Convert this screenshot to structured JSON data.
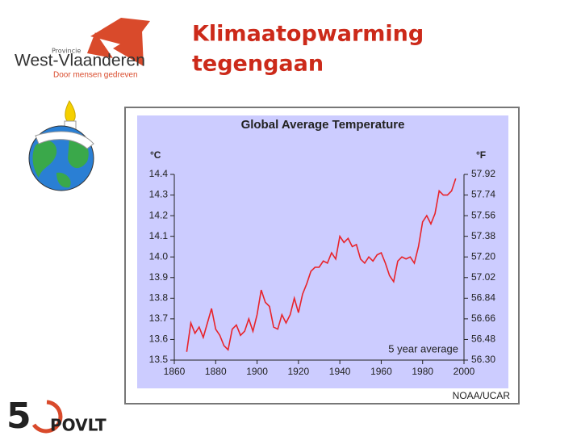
{
  "header": {
    "logo_small": "Provincie",
    "logo_name": "West-Vlaanderen",
    "logo_tagline": "Door mensen gedreven",
    "title_lines": [
      "Klimaatopwarming",
      "tegengaan"
    ]
  },
  "footer": {
    "logo_digit": "5",
    "logo_text": "POVLT"
  },
  "chart_data": {
    "type": "line",
    "title": "Global Average Temperature",
    "ylabel": "°C",
    "y2label": "°F",
    "annotation": "5 year average",
    "source": "NOAA/UCAR",
    "x": [
      1866,
      1868,
      1870,
      1872,
      1874,
      1876,
      1878,
      1880,
      1882,
      1884,
      1886,
      1888,
      1890,
      1892,
      1894,
      1896,
      1898,
      1900,
      1902,
      1904,
      1906,
      1908,
      1910,
      1912,
      1914,
      1916,
      1918,
      1920,
      1922,
      1924,
      1926,
      1928,
      1930,
      1932,
      1934,
      1936,
      1938,
      1940,
      1942,
      1944,
      1946,
      1948,
      1950,
      1952,
      1954,
      1956,
      1958,
      1960,
      1962,
      1964,
      1966,
      1968,
      1970,
      1972,
      1974,
      1976,
      1978,
      1980,
      1982,
      1984,
      1986,
      1988,
      1990,
      1992,
      1994,
      1996
    ],
    "series": [
      {
        "color": "#e8232a",
        "values": [
          13.54,
          13.68,
          13.63,
          13.66,
          13.61,
          13.68,
          13.75,
          13.65,
          13.62,
          13.57,
          13.55,
          13.65,
          13.67,
          13.62,
          13.64,
          13.7,
          13.64,
          13.72,
          13.84,
          13.78,
          13.76,
          13.66,
          13.65,
          13.72,
          13.68,
          13.72,
          13.8,
          13.73,
          13.82,
          13.87,
          13.93,
          13.95,
          13.95,
          13.98,
          13.97,
          14.02,
          13.99,
          14.1,
          14.07,
          14.09,
          14.05,
          14.06,
          13.99,
          13.97,
          14.0,
          13.98,
          14.01,
          14.02,
          13.97,
          13.91,
          13.88,
          13.98,
          14.0,
          13.99,
          14.0,
          13.97,
          14.05,
          14.17,
          14.2,
          14.16,
          14.21,
          14.32,
          14.3,
          14.3,
          14.32,
          14.38
        ]
      }
    ],
    "xlim": [
      1860,
      2000
    ],
    "xticks": [
      1860,
      1880,
      1900,
      1920,
      1940,
      1960,
      1980,
      2000
    ],
    "ylim": [
      13.5,
      14.4
    ],
    "yticks": [
      13.5,
      13.6,
      13.7,
      13.8,
      13.9,
      {
        "value": 14.0,
        "label": "14.0"
      },
      14.1,
      14.2,
      14.3,
      14.4
    ],
    "y2lim": [
      56.3,
      57.92
    ],
    "y2ticks": [
      {
        "value": 56.3,
        "label": "56.30"
      },
      56.48,
      56.66,
      56.84,
      57.02,
      {
        "value": 57.2,
        "label": "57.20"
      },
      57.38,
      57.56,
      57.74,
      57.92
    ]
  }
}
